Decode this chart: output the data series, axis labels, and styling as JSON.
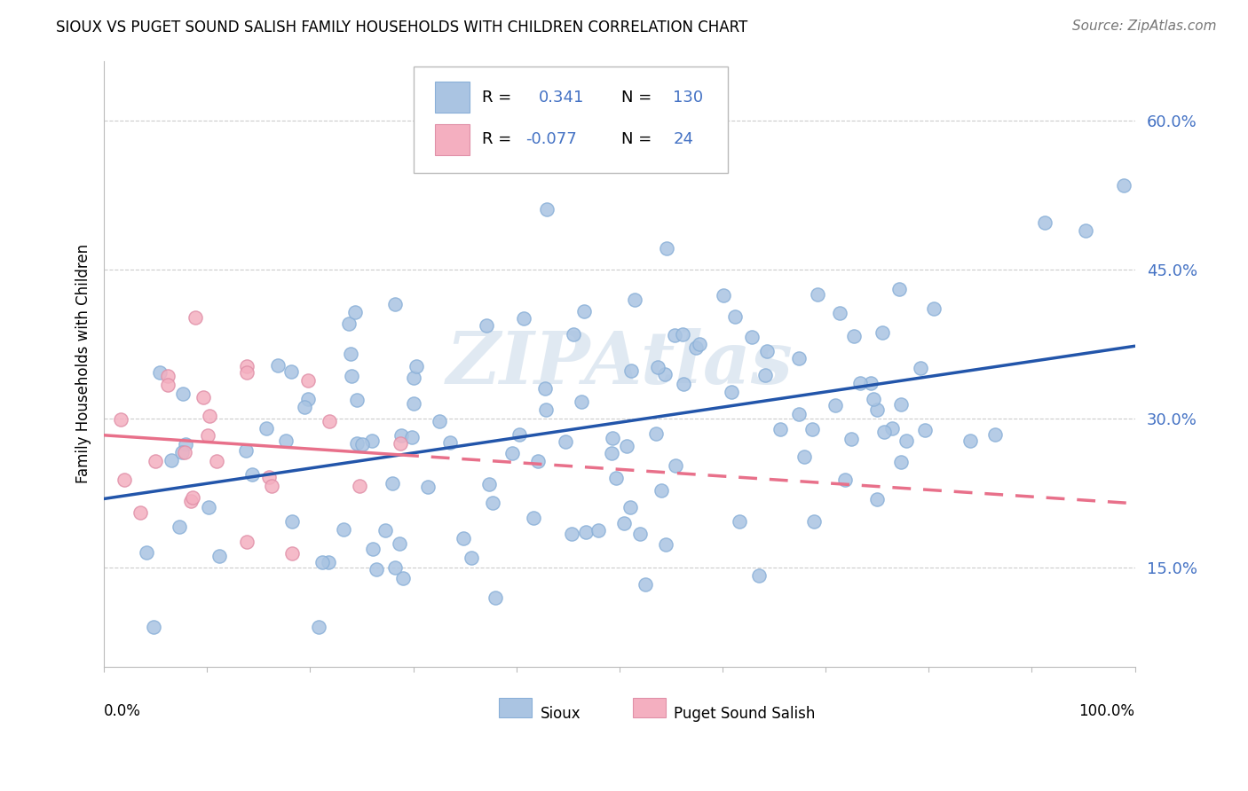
{
  "title": "SIOUX VS PUGET SOUND SALISH FAMILY HOUSEHOLDS WITH CHILDREN CORRELATION CHART",
  "source": "Source: ZipAtlas.com",
  "ylabel": "Family Households with Children",
  "xlim": [
    0.0,
    1.0
  ],
  "ylim": [
    0.05,
    0.66
  ],
  "yticks": [
    0.15,
    0.3,
    0.45,
    0.6
  ],
  "ytick_labels": [
    "15.0%",
    "30.0%",
    "45.0%",
    "60.0%"
  ],
  "watermark": "ZIPAtlas",
  "sioux_color": "#aac4e2",
  "puget_color": "#f4afc0",
  "sioux_line_color": "#2255aa",
  "puget_line_color": "#e8708a",
  "background_color": "#ffffff",
  "grid_color": "#cccccc"
}
